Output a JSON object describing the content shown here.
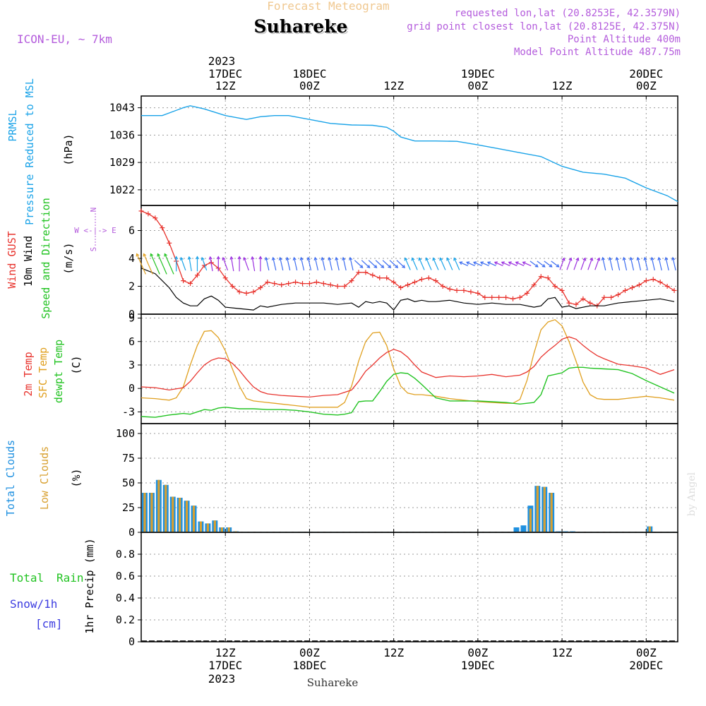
{
  "header": {
    "forecast_label": "Forecast Meteogram",
    "location_title": "Suhareke",
    "model": "ICON-EU, ~ 7km",
    "requested": "requested lon,lat (20.8253E, 42.3579N)",
    "grid_point": "grid point closest lon,lat (20.8125E, 42.375N)",
    "point_altitude": "Point Altitude 400m",
    "model_altitude": "Model Point Altitude 487.75m"
  },
  "footer": {
    "location": "Suhareke",
    "credit": "by Angel"
  },
  "time_axis": {
    "year_label": "2023",
    "ticks": [
      {
        "t": 12,
        "hour": "12Z",
        "date": "17DEC"
      },
      {
        "t": 24,
        "hour": "00Z",
        "date": "18DEC"
      },
      {
        "t": 36,
        "hour": "12Z",
        "date": ""
      },
      {
        "t": 48,
        "hour": "00Z",
        "date": "19DEC"
      },
      {
        "t": 60,
        "hour": "12Z",
        "date": ""
      },
      {
        "t": 72,
        "hour": "00Z",
        "date": "20DEC"
      }
    ]
  },
  "panels": {
    "pressure": {
      "label1": "PRMSL",
      "label2": "Pressure Reduced to MSL",
      "unit": "(hPa)",
      "tick_labels": [
        "1043",
        "1036",
        "1029",
        "1022"
      ]
    },
    "wind": {
      "label_gust": "Wind GUST",
      "label_10m": "10m Wind",
      "label_dir": "Speed and Direction",
      "unit": "(m/s)",
      "compass_n": "N",
      "compass_s": "S",
      "compass_we": "W <-|-> E",
      "tick_labels": [
        "6",
        "4",
        "2",
        "0"
      ]
    },
    "temp": {
      "label_2m": "2m Temp",
      "label_sfc": "SFC Temp",
      "label_dew": "dewpt Temp",
      "unit": "(C)",
      "tick_labels": [
        "9",
        "6",
        "3",
        "0",
        "-3"
      ]
    },
    "clouds": {
      "label_total": "Total Clouds",
      "label_low": "Low Clouds",
      "unit": "(%)",
      "tick_labels": [
        "100",
        "75",
        "50",
        "25",
        "0"
      ]
    },
    "precip": {
      "label_total": "Total",
      "label_rain": "Rain",
      "label_snow": "Snow/1h",
      "label_cm": "[cm]",
      "axis_label": "1hr Precip (mm)",
      "tick_labels": [
        "0.8",
        "0.6",
        "0.4",
        "0.2",
        "0"
      ]
    }
  },
  "colors": {
    "pressure": "#1aa3e8",
    "gust": "#e8332d",
    "wind": "#000000",
    "temp2m": "#e8332d",
    "sfc": "#e0a020",
    "dew": "#22c322",
    "total_cloud": "#1e90e0",
    "low_cloud": "#d8a030",
    "label_purple": "#b45cdc",
    "label_total_green": "#22c322",
    "label_snow_blue": "#3c3ce0",
    "forecast_label": "#f0c890"
  },
  "chart_data": [
    {
      "type": "line",
      "title": "PRMSL Pressure Reduced to MSL",
      "ylabel": "(hPa)",
      "x_unit": "hours from 17DEC 00Z",
      "ylim": [
        1018,
        1046
      ],
      "series": [
        {
          "name": "PRMSL",
          "x": [
            0,
            3,
            6,
            7,
            9,
            12,
            15,
            17,
            19,
            21,
            24,
            27,
            30,
            33,
            35,
            36,
            37,
            39,
            42,
            45,
            48,
            51,
            54,
            57,
            60,
            63,
            66,
            69,
            72,
            75,
            76.5
          ],
          "values": [
            1041,
            1041,
            1043,
            1043.5,
            1042.7,
            1041,
            1040,
            1040.7,
            1041,
            1041,
            1040,
            1039,
            1038.6,
            1038.5,
            1038,
            1037,
            1035.5,
            1034.5,
            1034.5,
            1034.4,
            1033.5,
            1032.5,
            1031.5,
            1030.5,
            1028,
            1026.5,
            1026,
            1025,
            1022.5,
            1020.5,
            1019
          ]
        }
      ]
    },
    {
      "type": "line",
      "title": "Wind",
      "ylabel": "(m/s)",
      "x_unit": "hours from 17DEC 00Z",
      "ylim": [
        0,
        7.8
      ],
      "series": [
        {
          "name": "Wind GUST",
          "x": [
            0,
            1,
            2,
            3,
            4,
            5,
            6,
            7,
            8,
            9,
            10,
            11,
            12,
            13,
            14,
            15,
            16,
            17,
            18,
            19,
            20,
            21,
            22,
            23,
            24,
            25,
            26,
            27,
            28,
            29,
            30,
            31,
            32,
            33,
            34,
            35,
            36,
            37,
            38,
            39,
            40,
            41,
            42,
            43,
            44,
            45,
            46,
            47,
            48,
            49,
            50,
            51,
            52,
            53,
            54,
            55,
            56,
            57,
            58,
            59,
            60,
            61,
            62,
            63,
            64,
            65,
            66,
            67,
            68,
            69,
            70,
            71,
            72,
            73,
            74,
            75,
            76
          ],
          "values": [
            7.4,
            7.2,
            6.9,
            6.2,
            5.1,
            3.8,
            2.4,
            2.2,
            2.8,
            3.5,
            3.7,
            3.3,
            2.6,
            2.0,
            1.6,
            1.5,
            1.6,
            1.9,
            2.3,
            2.2,
            2.1,
            2.2,
            2.3,
            2.2,
            2.2,
            2.3,
            2.2,
            2.1,
            2.0,
            2.0,
            2.4,
            3.0,
            3.0,
            2.8,
            2.6,
            2.6,
            2.3,
            1.9,
            2.1,
            2.3,
            2.5,
            2.6,
            2.4,
            2.0,
            1.8,
            1.7,
            1.7,
            1.6,
            1.5,
            1.2,
            1.2,
            1.2,
            1.2,
            1.1,
            1.2,
            1.5,
            2.1,
            2.7,
            2.6,
            2.0,
            1.7,
            0.8,
            0.7,
            1.1,
            0.8,
            0.6,
            1.2,
            1.2,
            1.4,
            1.7,
            1.9,
            2.1,
            2.4,
            2.5,
            2.3,
            2.0,
            1.7
          ]
        },
        {
          "name": "10m Wind",
          "x": [
            0,
            2,
            4,
            5,
            6,
            7,
            8,
            9,
            10,
            11,
            12,
            14,
            16,
            17,
            18,
            20,
            22,
            24,
            26,
            28,
            30,
            31,
            32,
            33,
            34,
            35,
            36,
            37,
            38,
            39,
            40,
            41,
            42,
            44,
            46,
            48,
            50,
            52,
            54,
            56,
            57,
            58,
            59,
            60,
            61,
            62,
            64,
            66,
            68,
            70,
            72,
            74,
            76
          ],
          "values": [
            3.3,
            2.9,
            1.9,
            1.2,
            0.8,
            0.6,
            0.6,
            1.1,
            1.3,
            1.0,
            0.5,
            0.4,
            0.3,
            0.6,
            0.5,
            0.7,
            0.8,
            0.8,
            0.8,
            0.7,
            0.8,
            0.5,
            0.9,
            0.8,
            0.9,
            0.8,
            0.3,
            1.0,
            1.1,
            0.9,
            1.0,
            0.9,
            0.9,
            1.0,
            0.8,
            0.7,
            0.8,
            0.7,
            0.7,
            0.5,
            0.6,
            1.1,
            1.2,
            0.5,
            0.6,
            0.4,
            0.6,
            0.6,
            0.8,
            0.9,
            1.0,
            1.1,
            0.9
          ]
        }
      ]
    },
    {
      "type": "line",
      "title": "Temperature",
      "ylabel": "(C)",
      "x_unit": "hours from 17DEC 00Z",
      "ylim": [
        -4.5,
        9.5
      ],
      "series": [
        {
          "name": "2m Temp",
          "x": [
            0,
            2,
            4,
            6,
            7,
            8,
            9,
            10,
            11,
            12,
            13,
            14,
            15,
            16,
            17,
            18,
            19,
            20,
            22,
            24,
            26,
            28,
            30,
            31,
            32,
            33,
            34,
            35,
            36,
            37,
            38,
            39,
            40,
            42,
            44,
            46,
            48,
            50,
            52,
            54,
            55,
            56,
            57,
            58,
            59,
            60,
            61,
            62,
            63,
            64,
            65,
            66,
            68,
            70,
            72,
            74,
            76
          ],
          "values": [
            0.2,
            0.1,
            -0.2,
            0.1,
            0.9,
            2.0,
            3.0,
            3.6,
            3.9,
            3.8,
            3.2,
            2.3,
            1.2,
            0.2,
            -0.4,
            -0.7,
            -0.8,
            -0.9,
            -1.0,
            -1.1,
            -0.9,
            -0.8,
            -0.2,
            0.9,
            2.2,
            3.0,
            3.9,
            4.6,
            5.0,
            4.7,
            4.0,
            3.0,
            2.1,
            1.4,
            1.6,
            1.5,
            1.6,
            1.8,
            1.5,
            1.7,
            2.1,
            2.8,
            4.0,
            4.8,
            5.5,
            6.3,
            6.6,
            6.3,
            5.5,
            4.8,
            4.2,
            3.8,
            3.1,
            2.9,
            2.6,
            1.8,
            2.4
          ]
        },
        {
          "name": "SFC Temp",
          "x": [
            0,
            2,
            4,
            5,
            6,
            7,
            8,
            9,
            10,
            11,
            12,
            13,
            14,
            15,
            16,
            17,
            18,
            19,
            20,
            22,
            24,
            26,
            28,
            29,
            30,
            31,
            32,
            33,
            34,
            35,
            36,
            37,
            38,
            39,
            40,
            42,
            44,
            46,
            48,
            50,
            52,
            53,
            54,
            55,
            56,
            57,
            58,
            59,
            60,
            61,
            62,
            63,
            64,
            65,
            66,
            68,
            70,
            72,
            74,
            76
          ],
          "values": [
            -1.2,
            -1.3,
            -1.5,
            -1.2,
            0.2,
            3.0,
            5.5,
            7.3,
            7.4,
            6.5,
            4.8,
            2.5,
            0.3,
            -1.3,
            -1.6,
            -1.7,
            -1.8,
            -1.9,
            -2.0,
            -2.2,
            -2.4,
            -2.4,
            -2.4,
            -1.8,
            0.3,
            3.5,
            6.0,
            7.1,
            7.2,
            5.5,
            2.5,
            0.3,
            -0.6,
            -0.8,
            -0.8,
            -1.0,
            -1.3,
            -1.5,
            -1.7,
            -1.8,
            -1.9,
            -1.9,
            -1.4,
            1.0,
            4.5,
            7.5,
            8.5,
            8.8,
            8.0,
            6.0,
            3.5,
            0.8,
            -0.8,
            -1.3,
            -1.4,
            -1.4,
            -1.2,
            -1.0,
            -1.2,
            -1.5
          ]
        },
        {
          "name": "dewpt Temp",
          "x": [
            0,
            2,
            4,
            6,
            7,
            8,
            9,
            10,
            11,
            12,
            14,
            16,
            18,
            20,
            22,
            24,
            26,
            28,
            29,
            30,
            31,
            32,
            33,
            34,
            35,
            36,
            37,
            38,
            39,
            40,
            42,
            44,
            46,
            48,
            50,
            52,
            54,
            55,
            56,
            57,
            58,
            59,
            60,
            61,
            62,
            63,
            64,
            66,
            68,
            70,
            72,
            74,
            76
          ],
          "values": [
            -3.6,
            -3.7,
            -3.4,
            -3.2,
            -3.3,
            -3.0,
            -2.7,
            -2.8,
            -2.5,
            -2.4,
            -2.6,
            -2.6,
            -2.7,
            -2.7,
            -2.8,
            -3.0,
            -3.3,
            -3.4,
            -3.3,
            -3.1,
            -1.7,
            -1.6,
            -1.6,
            -0.4,
            0.9,
            1.8,
            2.0,
            1.9,
            1.3,
            0.5,
            -1.2,
            -1.6,
            -1.6,
            -1.6,
            -1.7,
            -1.8,
            -2.0,
            -1.9,
            -1.8,
            -0.8,
            1.6,
            1.8,
            2.0,
            2.6,
            2.7,
            2.7,
            2.6,
            2.5,
            2.4,
            1.9,
            1.0,
            0.2,
            -0.6
          ]
        }
      ]
    },
    {
      "type": "bar",
      "title": "Clouds",
      "ylabel": "(%)",
      "x_unit": "hours from 17DEC 00Z",
      "ylim": [
        0,
        110
      ],
      "series": [
        {
          "name": "Total Clouds",
          "x": [
            0,
            1,
            2,
            3,
            4,
            5,
            6,
            7,
            8,
            9,
            10,
            11,
            12,
            13,
            53,
            54,
            55,
            56,
            57,
            58,
            59,
            60,
            61,
            72
          ],
          "values": [
            40,
            40,
            53,
            48,
            36,
            35,
            32,
            27,
            11,
            9,
            12,
            5,
            5,
            1,
            5,
            7,
            27,
            47,
            46,
            40,
            1,
            1,
            1,
            6
          ]
        },
        {
          "name": "Low Clouds",
          "x": [
            0,
            1,
            2,
            3,
            4,
            5,
            6,
            7,
            8,
            9,
            10,
            11,
            12,
            13,
            55,
            56,
            57,
            58,
            72
          ],
          "values": [
            40,
            40,
            53,
            48,
            36,
            35,
            32,
            27,
            11,
            9,
            12,
            5,
            5,
            1,
            24,
            47,
            46,
            40,
            6
          ]
        }
      ]
    },
    {
      "type": "bar",
      "title": "1hr Precip",
      "ylabel": "1hr Precip (mm)",
      "x_unit": "hours from 17DEC 00Z",
      "ylim": [
        0,
        1
      ],
      "series": [
        {
          "name": "Total Rain",
          "x": [],
          "values": []
        }
      ]
    }
  ]
}
